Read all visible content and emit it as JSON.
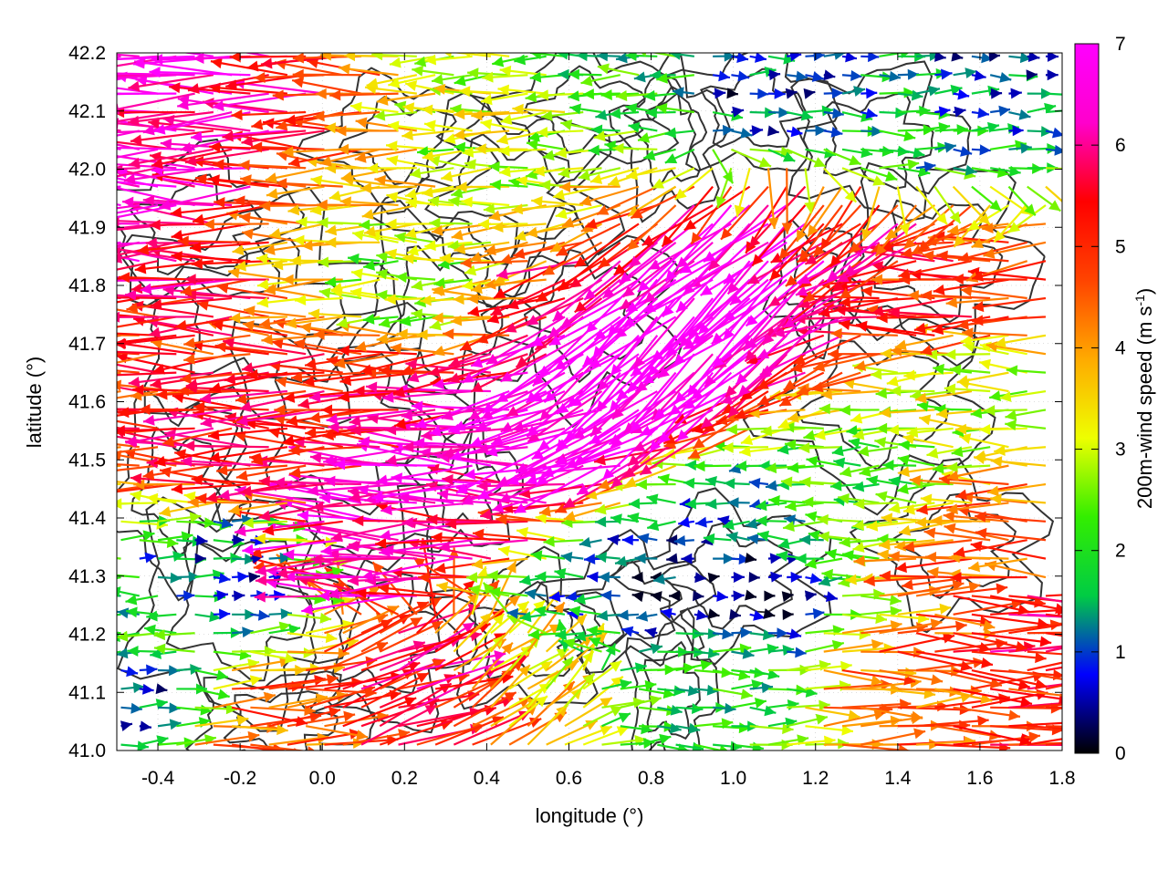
{
  "chart_data": {
    "type": "vector-field",
    "xlabel": "longitude (°)",
    "ylabel": "latitude (°)",
    "xlim": [
      -0.5,
      1.8
    ],
    "ylim": [
      41.0,
      42.2
    ],
    "xticks": [
      "-0.4",
      "-0.2",
      "0.0",
      "0.2",
      "0.4",
      "0.6",
      "0.8",
      "1.0",
      "1.2",
      "1.4",
      "1.6",
      "1.8"
    ],
    "xtick_values": [
      -0.4,
      -0.2,
      0.0,
      0.2,
      0.4,
      0.6,
      0.8,
      1.0,
      1.2,
      1.4,
      1.6,
      1.8
    ],
    "yticks": [
      "41.0",
      "41.1",
      "41.2",
      "41.3",
      "41.4",
      "41.5",
      "41.6",
      "41.7",
      "41.8",
      "41.9",
      "42.0",
      "42.1",
      "42.2"
    ],
    "ytick_values": [
      41.0,
      41.1,
      41.2,
      41.3,
      41.4,
      41.5,
      41.6,
      41.7,
      41.8,
      41.9,
      42.0,
      42.1,
      42.2
    ],
    "grid": true,
    "colorbar": {
      "label_main": "200m-wind speed (m s",
      "label_sup": "-1",
      "label_close": ")",
      "range": [
        0,
        7
      ],
      "ticks": [
        "0",
        "1",
        "2",
        "3",
        "4",
        "5",
        "6",
        "7"
      ],
      "tick_values": [
        0,
        1,
        2,
        3,
        4,
        5,
        6,
        7
      ],
      "colors": [
        "#000000",
        "#0000ff",
        "#00cc44",
        "#33ee00",
        "#eeff00",
        "#ffaa00",
        "#ff4400",
        "#ff0000",
        "#ff00cc",
        "#ff00ff"
      ]
    },
    "contour_color": "#333333",
    "arrows_approx": [
      {
        "lon": -0.45,
        "lat": 42.15,
        "speed": 6.8,
        "dir": "W"
      },
      {
        "lon": -0.4,
        "lat": 41.95,
        "speed": 6.7,
        "dir": "W"
      },
      {
        "lon": -0.3,
        "lat": 42.05,
        "speed": 6.2,
        "dir": "W"
      },
      {
        "lon": -0.2,
        "lat": 41.85,
        "speed": 5.6,
        "dir": "W"
      },
      {
        "lon": -0.4,
        "lat": 41.65,
        "speed": 5.0,
        "dir": "W"
      },
      {
        "lon": -0.2,
        "lat": 41.55,
        "speed": 5.5,
        "dir": "W"
      },
      {
        "lon": 0.0,
        "lat": 41.6,
        "speed": 5.4,
        "dir": "W"
      },
      {
        "lon": 0.2,
        "lat": 41.6,
        "speed": 5.5,
        "dir": "W"
      },
      {
        "lon": 0.4,
        "lat": 41.5,
        "speed": 6.8,
        "dir": "W"
      },
      {
        "lon": 0.6,
        "lat": 41.55,
        "speed": 7.0,
        "dir": "WSW"
      },
      {
        "lon": 0.8,
        "lat": 41.65,
        "speed": 7.0,
        "dir": "SW"
      },
      {
        "lon": 0.95,
        "lat": 41.75,
        "speed": 7.0,
        "dir": "SW"
      },
      {
        "lon": 1.1,
        "lat": 41.85,
        "speed": 7.0,
        "dir": "SW"
      },
      {
        "lon": 0.2,
        "lat": 41.35,
        "speed": 6.8,
        "dir": "W"
      },
      {
        "lon": 0.4,
        "lat": 41.4,
        "speed": 5.8,
        "dir": "W"
      },
      {
        "lon": 0.0,
        "lat": 41.85,
        "speed": 3.5,
        "dir": "W"
      },
      {
        "lon": 0.2,
        "lat": 41.8,
        "speed": 2.5,
        "dir": "W"
      },
      {
        "lon": 0.5,
        "lat": 42.05,
        "speed": 3.0,
        "dir": "W"
      },
      {
        "lon": 0.8,
        "lat": 42.15,
        "speed": 2.0,
        "dir": "W"
      },
      {
        "lon": 1.05,
        "lat": 42.15,
        "speed": 0.8,
        "dir": "E"
      },
      {
        "lon": 1.4,
        "lat": 42.05,
        "speed": 1.5,
        "dir": "E"
      },
      {
        "lon": 1.6,
        "lat": 42.15,
        "speed": 1.0,
        "dir": "E"
      },
      {
        "lon": 1.35,
        "lat": 41.9,
        "speed": 5.5,
        "dir": "SW"
      },
      {
        "lon": 1.5,
        "lat": 41.8,
        "speed": 5.0,
        "dir": "W"
      },
      {
        "lon": 1.6,
        "lat": 41.6,
        "speed": 3.0,
        "dir": "W"
      },
      {
        "lon": 1.3,
        "lat": 41.45,
        "speed": 2.0,
        "dir": "W"
      },
      {
        "lon": 1.0,
        "lat": 41.4,
        "speed": 1.2,
        "dir": "W"
      },
      {
        "lon": 0.8,
        "lat": 41.3,
        "speed": 0.6,
        "dir": "W"
      },
      {
        "lon": 1.0,
        "lat": 41.28,
        "speed": 0.3,
        "dir": "E"
      },
      {
        "lon": 0.6,
        "lat": 41.25,
        "speed": 1.5,
        "dir": "W"
      },
      {
        "lon": -0.25,
        "lat": 41.3,
        "speed": 1.0,
        "dir": "E"
      },
      {
        "lon": -0.45,
        "lat": 41.2,
        "speed": 2.0,
        "dir": "W"
      },
      {
        "lon": -0.45,
        "lat": 41.1,
        "speed": 1.0,
        "dir": "E"
      },
      {
        "lon": -0.2,
        "lat": 41.05,
        "speed": 4.5,
        "dir": "E"
      },
      {
        "lon": 0.2,
        "lat": 41.1,
        "speed": 5.5,
        "dir": "ENE"
      },
      {
        "lon": 0.45,
        "lat": 41.15,
        "speed": 3.5,
        "dir": "NE"
      },
      {
        "lon": 0.9,
        "lat": 41.1,
        "speed": 2.0,
        "dir": "E"
      },
      {
        "lon": 1.4,
        "lat": 41.1,
        "speed": 4.5,
        "dir": "E"
      },
      {
        "lon": 1.6,
        "lat": 41.05,
        "speed": 5.0,
        "dir": "E"
      },
      {
        "lon": 1.7,
        "lat": 41.2,
        "speed": 5.5,
        "dir": "E"
      },
      {
        "lon": 1.7,
        "lat": 41.35,
        "speed": 4.5,
        "dir": "W"
      }
    ]
  }
}
